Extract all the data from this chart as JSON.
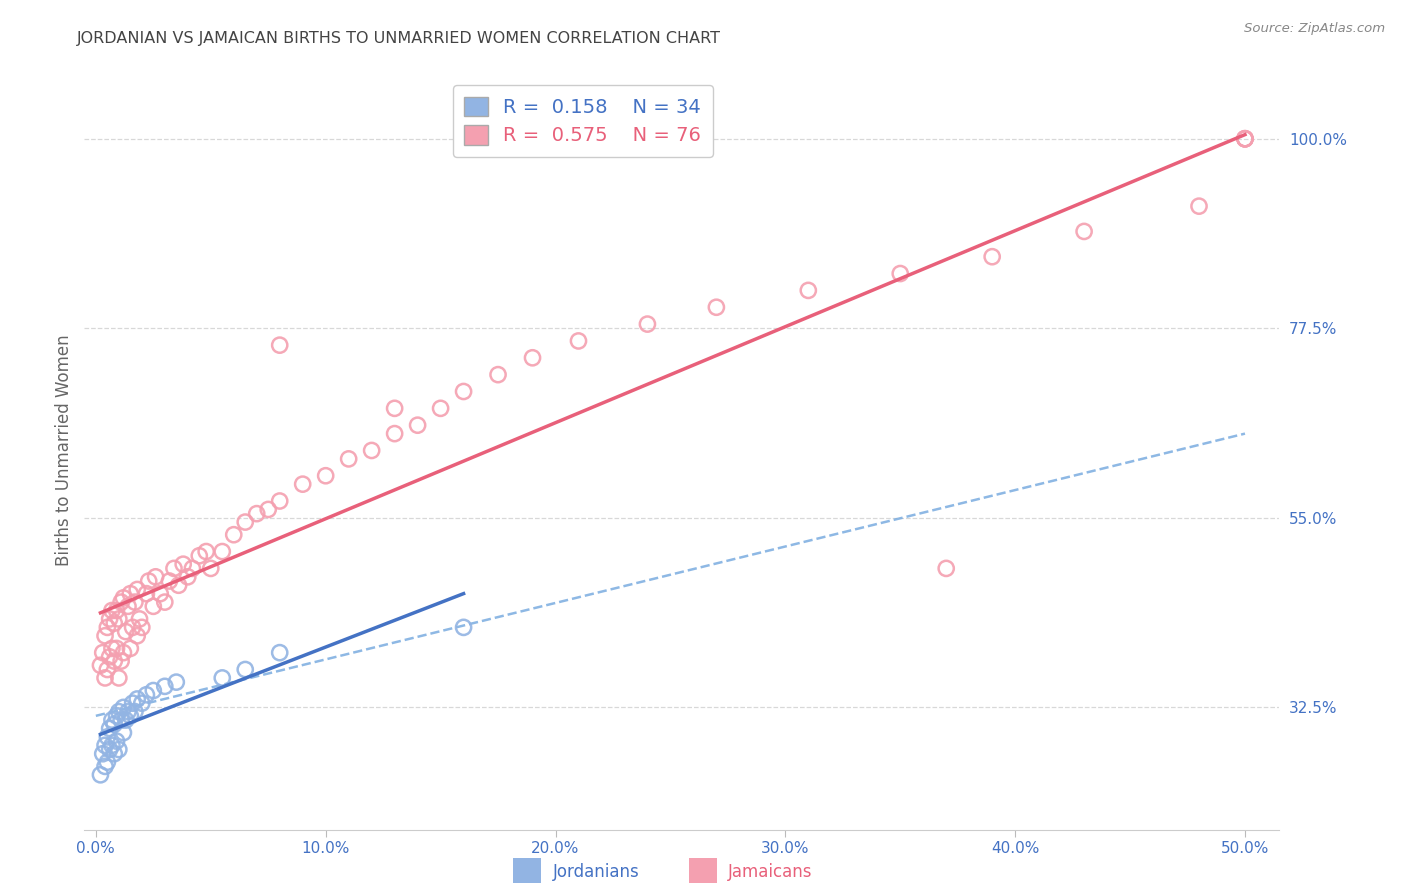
{
  "title": "JORDANIAN VS JAMAICAN BIRTHS TO UNMARRIED WOMEN CORRELATION CHART",
  "source": "Source: ZipAtlas.com",
  "ylabel": "Births to Unmarried Women",
  "ytick_vals": [
    0.325,
    0.55,
    0.775,
    1.0
  ],
  "ytick_labels": [
    "32.5%",
    "55.0%",
    "77.5%",
    "100.0%"
  ],
  "xtick_vals": [
    0.0,
    0.1,
    0.2,
    0.3,
    0.4,
    0.5
  ],
  "xtick_labels": [
    "0.0%",
    "10.0%",
    "20.0%",
    "30.0%",
    "40.0%",
    "50.0%"
  ],
  "jordanian_R": 0.158,
  "jordanian_N": 34,
  "jamaican_R": 0.575,
  "jamaican_N": 76,
  "jordanian_dot_color": "#92b4e3",
  "jamaican_dot_color": "#f4a0b0",
  "regression_jordanian_color": "#4472c4",
  "regression_jamaican_color": "#e8607a",
  "dashed_line_color": "#7aace0",
  "background_color": "#ffffff",
  "grid_color": "#d8d8d8",
  "title_color": "#444444",
  "axis_label_color": "#4472c4",
  "legend_text_jordanian": "#4472c4",
  "legend_text_jamaican": "#e8607a",
  "jordanians_x": [
    0.002,
    0.003,
    0.004,
    0.004,
    0.005,
    0.005,
    0.006,
    0.006,
    0.007,
    0.007,
    0.008,
    0.008,
    0.009,
    0.009,
    0.01,
    0.01,
    0.011,
    0.012,
    0.012,
    0.013,
    0.014,
    0.015,
    0.016,
    0.017,
    0.018,
    0.02,
    0.022,
    0.025,
    0.03,
    0.035,
    0.055,
    0.065,
    0.08,
    0.16
  ],
  "jordanians_y": [
    0.245,
    0.27,
    0.255,
    0.28,
    0.26,
    0.29,
    0.275,
    0.3,
    0.28,
    0.31,
    0.27,
    0.305,
    0.285,
    0.315,
    0.275,
    0.32,
    0.31,
    0.295,
    0.325,
    0.31,
    0.32,
    0.315,
    0.33,
    0.32,
    0.335,
    0.33,
    0.34,
    0.345,
    0.35,
    0.355,
    0.36,
    0.37,
    0.39,
    0.42
  ],
  "jamaicans_x": [
    0.002,
    0.003,
    0.004,
    0.004,
    0.005,
    0.005,
    0.006,
    0.006,
    0.007,
    0.007,
    0.008,
    0.008,
    0.009,
    0.009,
    0.01,
    0.01,
    0.011,
    0.011,
    0.012,
    0.012,
    0.013,
    0.014,
    0.015,
    0.015,
    0.016,
    0.017,
    0.018,
    0.018,
    0.019,
    0.02,
    0.022,
    0.023,
    0.025,
    0.026,
    0.028,
    0.03,
    0.032,
    0.034,
    0.036,
    0.038,
    0.04,
    0.042,
    0.045,
    0.048,
    0.05,
    0.055,
    0.06,
    0.065,
    0.07,
    0.075,
    0.08,
    0.09,
    0.1,
    0.11,
    0.12,
    0.13,
    0.14,
    0.15,
    0.16,
    0.175,
    0.19,
    0.21,
    0.24,
    0.27,
    0.31,
    0.35,
    0.39,
    0.43,
    0.48,
    0.5,
    0.5,
    0.5,
    0.08,
    0.13,
    0.37,
    0.5
  ],
  "jamaicans_y": [
    0.375,
    0.39,
    0.36,
    0.41,
    0.37,
    0.42,
    0.385,
    0.43,
    0.395,
    0.44,
    0.38,
    0.425,
    0.395,
    0.44,
    0.36,
    0.43,
    0.38,
    0.45,
    0.39,
    0.455,
    0.415,
    0.445,
    0.395,
    0.46,
    0.42,
    0.45,
    0.41,
    0.465,
    0.43,
    0.42,
    0.46,
    0.475,
    0.445,
    0.48,
    0.46,
    0.45,
    0.475,
    0.49,
    0.47,
    0.495,
    0.48,
    0.49,
    0.505,
    0.51,
    0.49,
    0.51,
    0.53,
    0.545,
    0.555,
    0.56,
    0.57,
    0.59,
    0.6,
    0.62,
    0.63,
    0.65,
    0.66,
    0.68,
    0.7,
    0.72,
    0.74,
    0.76,
    0.78,
    0.8,
    0.82,
    0.84,
    0.86,
    0.89,
    0.92,
    1.0,
    1.0,
    1.0,
    0.755,
    0.68,
    0.49,
    1.0
  ],
  "xlim": [
    -0.005,
    0.515
  ],
  "ylim": [
    0.18,
    1.08
  ]
}
